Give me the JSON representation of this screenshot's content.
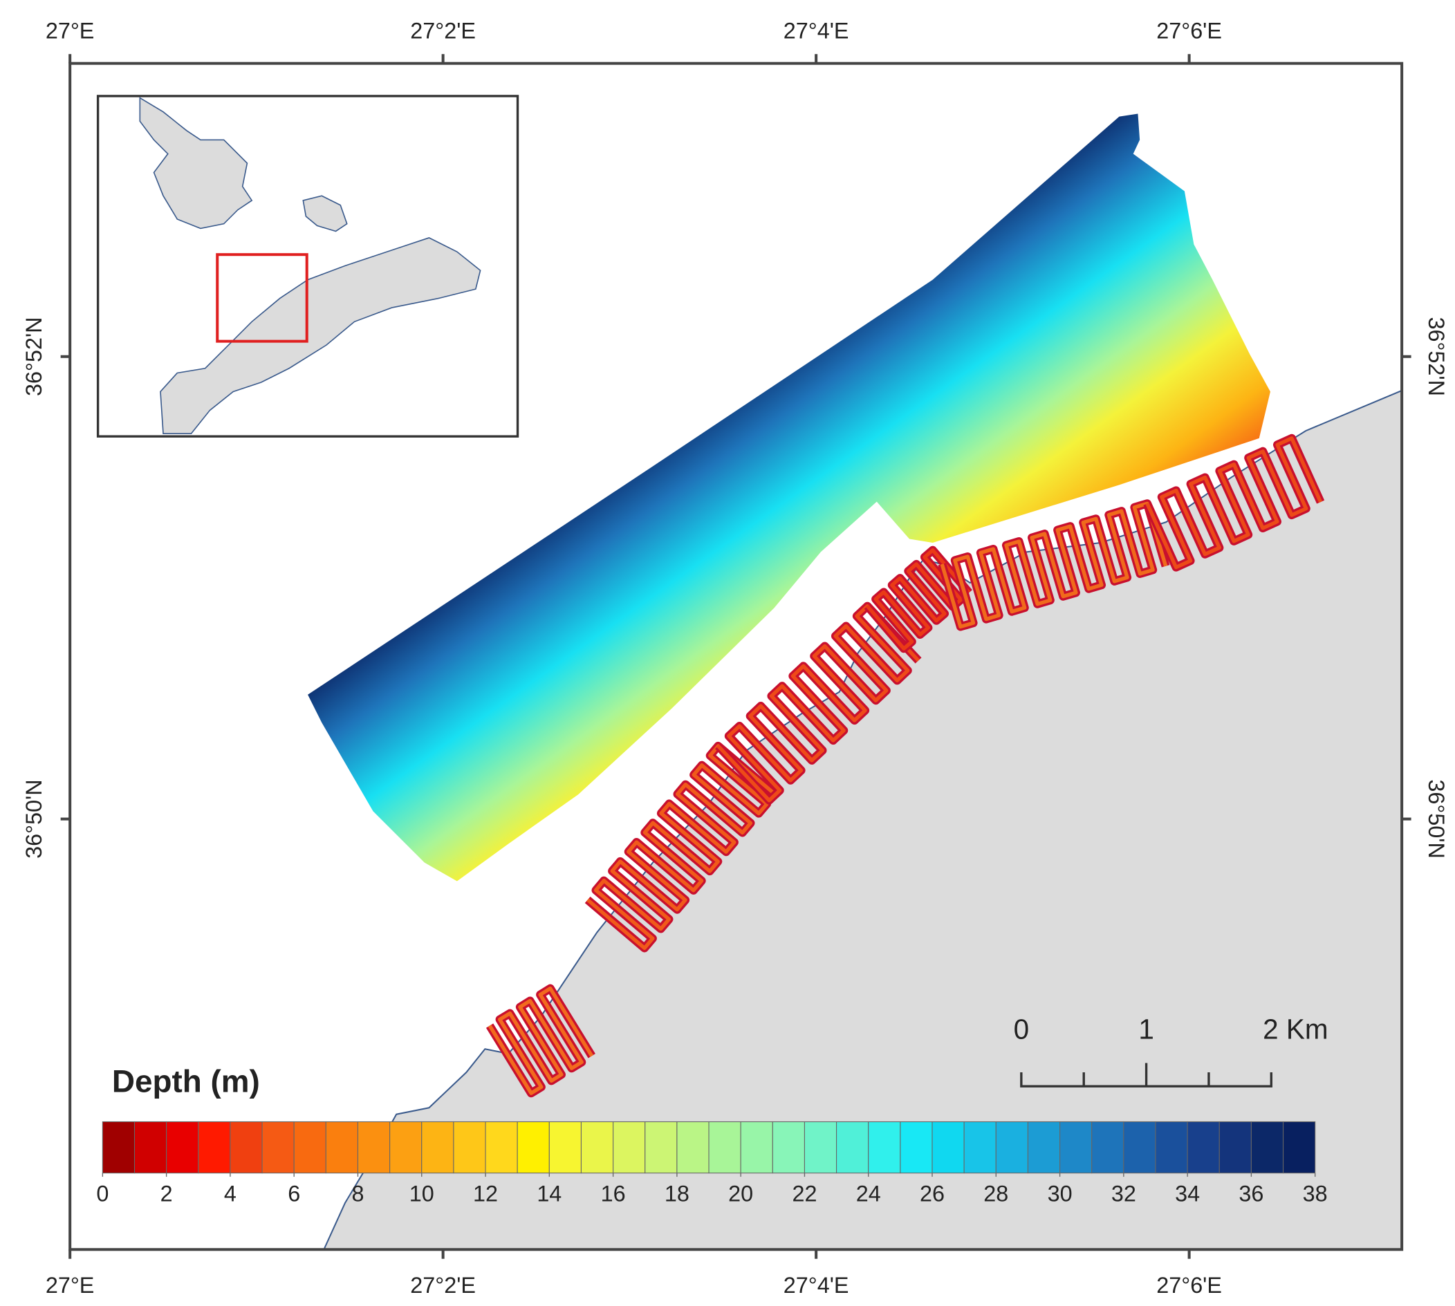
{
  "map": {
    "xlim": [
      27,
      27.119
    ],
    "ylim": [
      36.8023,
      36.8878
    ],
    "lon_ticks": [
      {
        "value": 27,
        "label": "27°E"
      },
      {
        "value": 27.033333,
        "label": "27°2'E"
      },
      {
        "value": 27.066667,
        "label": "27°4'E"
      },
      {
        "value": 27.1,
        "label": "27°6'E"
      }
    ],
    "lat_ticks": [
      {
        "value": 36.866667,
        "label": "36°52'N"
      },
      {
        "value": 36.833333,
        "label": "36°50'N"
      }
    ],
    "legend": {
      "title": "Depth (m)",
      "range": [
        0,
        38
      ],
      "ticks": [
        0,
        2,
        4,
        6,
        8,
        10,
        12,
        14,
        16,
        18,
        20,
        22,
        24,
        26,
        28,
        30,
        32,
        34,
        36,
        38
      ],
      "colors": [
        "#a00000",
        "#d00000",
        "#e80000",
        "#ff1a00",
        "#f04010",
        "#f55a14",
        "#f86a10",
        "#fa7f0e",
        "#fb9010",
        "#fca012",
        "#fdb414",
        "#fec718",
        "#ffd81c",
        "#fff000",
        "#f7f530",
        "#eaf54a",
        "#dcf560",
        "#ccf574",
        "#baf586",
        "#a8f598",
        "#98f5a8",
        "#88f5b8",
        "#70f3c8",
        "#50f0d8",
        "#30f0ec",
        "#18e8f5",
        "#10d8f0",
        "#18c4e8",
        "#1ab0e0",
        "#1c9cd4",
        "#1e88c8",
        "#1e74ba",
        "#1c62ac",
        "#1a509c",
        "#18408c",
        "#14347c",
        "#0c2868",
        "#082060"
      ]
    },
    "scale_bar": {
      "labels": [
        "0",
        "1",
        "2 Km"
      ]
    }
  }
}
